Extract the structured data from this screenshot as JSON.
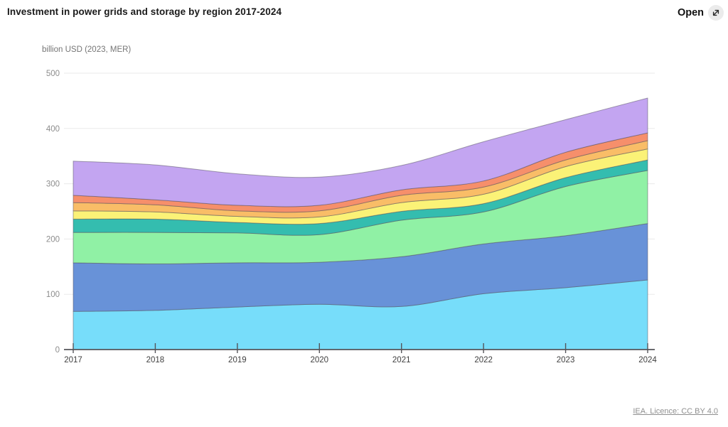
{
  "header": {
    "title": "Investment in power grids and storage by region 2017-2024",
    "open_label": "Open",
    "open_icon": "expand-icon"
  },
  "footer": {
    "attribution": "IEA. Licence: CC BY 4.0"
  },
  "chart_data": {
    "type": "area",
    "stacked": true,
    "title": "Investment in power grids and storage by region 2017-2024",
    "unit_label": "billion USD (2023, MER)",
    "x": [
      2017,
      2018,
      2019,
      2020,
      2021,
      2022,
      2023,
      2024
    ],
    "x_tick_labels": [
      "2017",
      "2018",
      "2019",
      "2020",
      "2021",
      "2022",
      "2023",
      "2024"
    ],
    "y_ticks": [
      0,
      100,
      200,
      300,
      400,
      500
    ],
    "ylim": [
      0,
      500
    ],
    "grid": true,
    "legend": "none",
    "series_note": "no legend shown in image; series named by fill color, listed bottom to top of stack",
    "series": [
      {
        "name": "light-blue",
        "color": "#77DDFA",
        "values": [
          69,
          71,
          77,
          82,
          78,
          101,
          112,
          126
        ]
      },
      {
        "name": "blue",
        "color": "#6892D8",
        "values": [
          88,
          84,
          80,
          76,
          90,
          90,
          94,
          102
        ]
      },
      {
        "name": "green",
        "color": "#90F1A5",
        "values": [
          55,
          57,
          54,
          50,
          66,
          58,
          89,
          96
        ]
      },
      {
        "name": "teal",
        "color": "#34BDAF",
        "values": [
          24,
          24,
          19,
          20,
          16,
          15,
          16,
          19
        ]
      },
      {
        "name": "yellow",
        "color": "#FBF277",
        "values": [
          15,
          13,
          11,
          12,
          16,
          17,
          20,
          20
        ]
      },
      {
        "name": "orange",
        "color": "#F9BD67",
        "values": [
          15,
          13,
          10,
          11,
          13,
          13,
          12,
          15
        ]
      },
      {
        "name": "salmon",
        "color": "#F68F6B",
        "values": [
          13,
          9,
          10,
          10,
          10,
          11,
          14,
          14
        ]
      },
      {
        "name": "purple",
        "color": "#C3A5F1",
        "values": [
          62,
          63,
          57,
          51,
          44,
          71,
          59,
          63
        ]
      }
    ],
    "totals": [
      341,
      334,
      318,
      312,
      333,
      376,
      416,
      455
    ],
    "colors": {
      "grid_line": "#eaeaea",
      "axis_line": "#55555a",
      "band_outline": "#54505e",
      "y_tick_text": "#8d8d8d",
      "x_tick_text": "#3f3f3f"
    }
  }
}
